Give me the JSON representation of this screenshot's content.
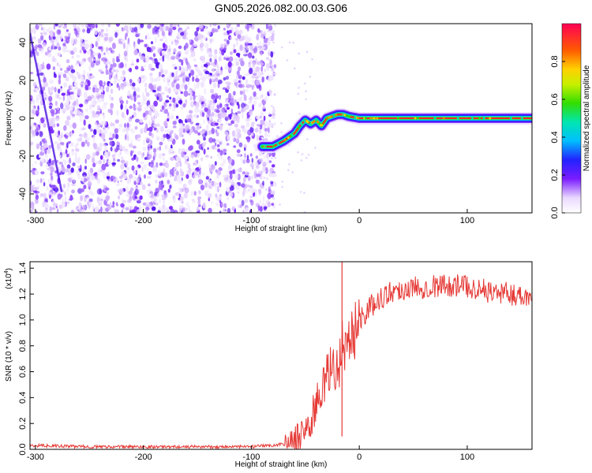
{
  "title": "GN05.2026.082.00.03.G06",
  "chart_data": [
    {
      "type": "heatmap",
      "xlabel": "Height of straight line (km)",
      "ylabel": "Frequency (Hz)",
      "xlim": [
        -305,
        160
      ],
      "ylim": [
        -50,
        50
      ],
      "xticks": [
        -300,
        -200,
        -100,
        0,
        100
      ],
      "yticks": [
        -40,
        -20,
        0,
        20,
        40
      ],
      "ridge": {
        "x": [
          -90,
          -80,
          -70,
          -60,
          -55,
          -50,
          -45,
          -40,
          -35,
          -30,
          -25,
          -20,
          -15,
          -10,
          0,
          20,
          60,
          100,
          160
        ],
        "y": [
          -15,
          -15,
          -12,
          -8,
          -4,
          -1,
          -3,
          -1,
          -4,
          0,
          1,
          2,
          2,
          1,
          0,
          0,
          0,
          0,
          0
        ]
      },
      "colorbar": {
        "label": "Normalized spectral amplitude",
        "ticks": [
          "0.0",
          "0.2",
          "0.4",
          "0.6",
          "0.8"
        ],
        "range": [
          0,
          1
        ]
      }
    },
    {
      "type": "line",
      "xlabel": "Height of straight line (km)",
      "ylabel": "SNR (10 * v/v)",
      "scale_note": "(x10",
      "scale_exp": "4",
      "scale_close": ")",
      "xlim": [
        -305,
        160
      ],
      "ylim": [
        0,
        1.45
      ],
      "xticks": [
        -300,
        -200,
        -100,
        0,
        100
      ],
      "yticks": [
        "0.0",
        "0.2",
        "0.4",
        "0.6",
        "0.8",
        "1.0",
        "1.2",
        "1.4"
      ],
      "series": [
        {
          "color": "#e53935",
          "x": [
            -305,
            -250,
            -200,
            -150,
            -100,
            -80,
            -65,
            -55,
            -50,
            -45,
            -40,
            -35,
            -30,
            -25,
            -20,
            -15,
            -10,
            -5,
            0,
            10,
            20,
            30,
            50,
            80,
            100,
            120,
            140,
            160
          ],
          "y": [
            0.03,
            0.02,
            0.02,
            0.02,
            0.02,
            0.03,
            0.05,
            0.1,
            0.17,
            0.2,
            0.35,
            0.45,
            0.55,
            0.65,
            0.6,
            0.85,
            0.75,
            0.92,
            1.0,
            1.1,
            1.17,
            1.22,
            1.25,
            1.27,
            1.26,
            1.22,
            1.2,
            1.18
          ]
        }
      ],
      "spike": {
        "x": -16,
        "y": 1.45
      }
    }
  ]
}
